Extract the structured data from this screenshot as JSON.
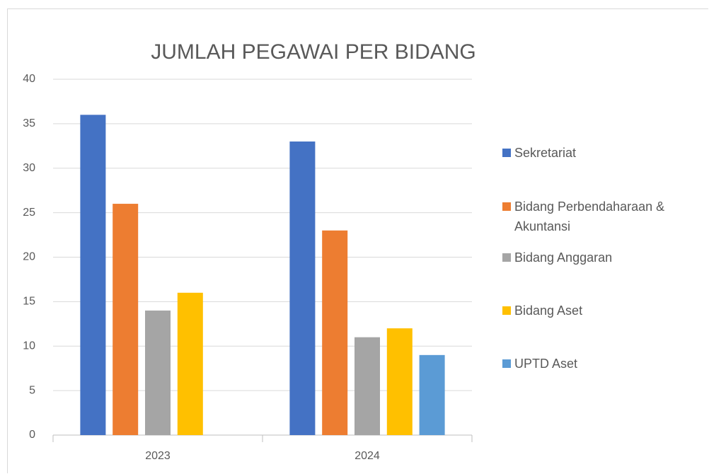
{
  "chart_data": {
    "type": "bar",
    "title": "JUMLAH PEGAWAI PER BIDANG",
    "categories": [
      "2023",
      "2024"
    ],
    "series": [
      {
        "name": "Sekretariat",
        "color": "#4472c4",
        "values": [
          36,
          33
        ]
      },
      {
        "name": "Bidang Perbendaharaan & Akuntansi",
        "color": "#ed7d31",
        "values": [
          26,
          23
        ]
      },
      {
        "name": "Bidang Anggaran",
        "color": "#a5a5a5",
        "values": [
          14,
          11
        ]
      },
      {
        "name": "Bidang Aset",
        "color": "#ffc000",
        "values": [
          16,
          12
        ]
      },
      {
        "name": "UPTD Aset",
        "color": "#5b9bd5",
        "values": [
          null,
          9
        ]
      }
    ],
    "ylim": [
      0,
      40
    ],
    "yticks": [
      0,
      5,
      10,
      15,
      20,
      25,
      30,
      35,
      40
    ],
    "grid": true,
    "legend": "right"
  }
}
